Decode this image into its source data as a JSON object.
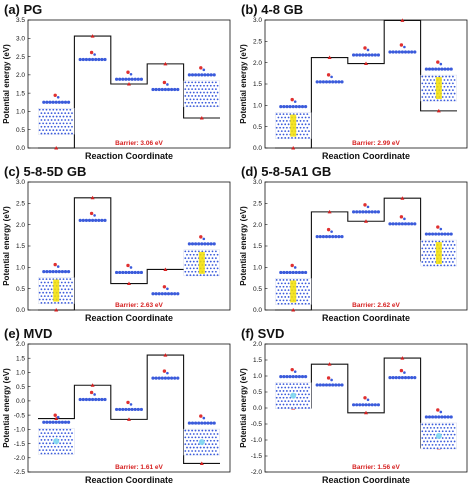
{
  "chart_data": [
    {
      "type": "line",
      "title": "(a) PG",
      "xlabel": "Reaction Coordinate",
      "ylabel": "Potential energy (eV)",
      "ylim": [
        0,
        3.5
      ],
      "yticks": [
        "0.0",
        "0.5",
        "1.0",
        "1.5",
        "2.0",
        "2.5",
        "3.0",
        "3.5"
      ],
      "steps": [
        0.0,
        3.06,
        1.75,
        2.3,
        0.82
      ],
      "minima": [
        1.25,
        2.42,
        1.88,
        1.6,
        2.0
      ],
      "maxima": [
        3.06,
        2.3
      ],
      "annotation": "Barrier: 3.06 eV"
    },
    {
      "type": "line",
      "title": "(b) 4-8 GB",
      "xlabel": "Reaction Coordinate",
      "ylabel": "Potential energy (eV)",
      "ylim": [
        0,
        3.0
      ],
      "yticks": [
        "0.0",
        "0.5",
        "1.0",
        "1.5",
        "2.0",
        "2.5",
        "3.0"
      ],
      "steps": [
        0.0,
        2.12,
        1.98,
        2.99,
        0.87
      ],
      "minima": [
        0.97,
        1.55,
        2.18,
        2.25,
        1.85
      ],
      "maxima": [
        2.12,
        2.99
      ],
      "annotation": "Barrier: 2.99 eV"
    },
    {
      "type": "line",
      "title": "(c) 5-8-5D GB",
      "xlabel": "Reaction Coordinate",
      "ylabel": "Potential energy (eV)",
      "ylim": [
        0,
        3.0
      ],
      "yticks": [
        "0.0",
        "0.5",
        "1.0",
        "1.5",
        "2.0",
        "2.5",
        "3.0"
      ],
      "steps": [
        0.0,
        2.63,
        0.62,
        0.95,
        0.95
      ],
      "minima": [
        0.9,
        2.1,
        0.88,
        0.38,
        1.55
      ],
      "maxima": [
        2.63,
        0.95
      ],
      "annotation": "Barrier: 2.63 eV"
    },
    {
      "type": "line",
      "title": "(d) 5-8-5A1 GB",
      "xlabel": "Reaction Coordinate",
      "ylabel": "Potential energy (eV)",
      "ylim": [
        0,
        3.0
      ],
      "yticks": [
        "0.0",
        "0.5",
        "1.0",
        "1.5",
        "2.0",
        "2.5",
        "3.0"
      ],
      "steps": [
        0.0,
        2.3,
        2.08,
        2.62,
        1.15
      ],
      "minima": [
        0.88,
        1.72,
        2.3,
        2.02,
        1.78
      ],
      "maxima": [
        2.3,
        2.62
      ],
      "annotation": "Barrier: 2.62 eV"
    },
    {
      "type": "line",
      "title": "(e) MVD",
      "xlabel": "Reaction Coordinate",
      "ylabel": "Potential energy (eV)",
      "ylim": [
        -2.5,
        2.0
      ],
      "yticks": [
        "-2.5",
        "-2.0",
        "-1.5",
        "-1.0",
        "-0.5",
        "0.0",
        "0.5",
        "1.0",
        "1.5",
        "2.0"
      ],
      "steps": [
        -0.62,
        0.55,
        -0.65,
        1.61,
        -2.2
      ],
      "minima": [
        -0.75,
        0.05,
        -0.3,
        0.8,
        -0.78
      ],
      "maxima": [
        0.55,
        1.61
      ],
      "annotation": "Barrier: 1.61 eV"
    },
    {
      "type": "line",
      "title": "(f) SVD",
      "xlabel": "Reaction Coordinate",
      "ylabel": "Potential energy (eV)",
      "ylim": [
        -2.0,
        2.0
      ],
      "yticks": [
        "-2.0",
        "-1.5",
        "-1.0",
        "-0.5",
        "0.0",
        "0.5",
        "1.0",
        "1.5",
        "2.0"
      ],
      "steps": [
        0.0,
        1.37,
        -0.15,
        1.56,
        -1.25
      ],
      "minima": [
        0.98,
        0.72,
        0.1,
        0.95,
        -0.28
      ],
      "maxima": [
        1.37,
        1.56
      ],
      "annotation": "Barrier: 1.56 eV"
    }
  ],
  "colors": {
    "line": "#111111",
    "marker": "#d62020",
    "atom_blue": "#3b5bdb",
    "atom_red": "#e03030",
    "atom_yellow": "#f5e000",
    "atom_cyan": "#7fd7f0",
    "barrier_text": "#d62020"
  }
}
